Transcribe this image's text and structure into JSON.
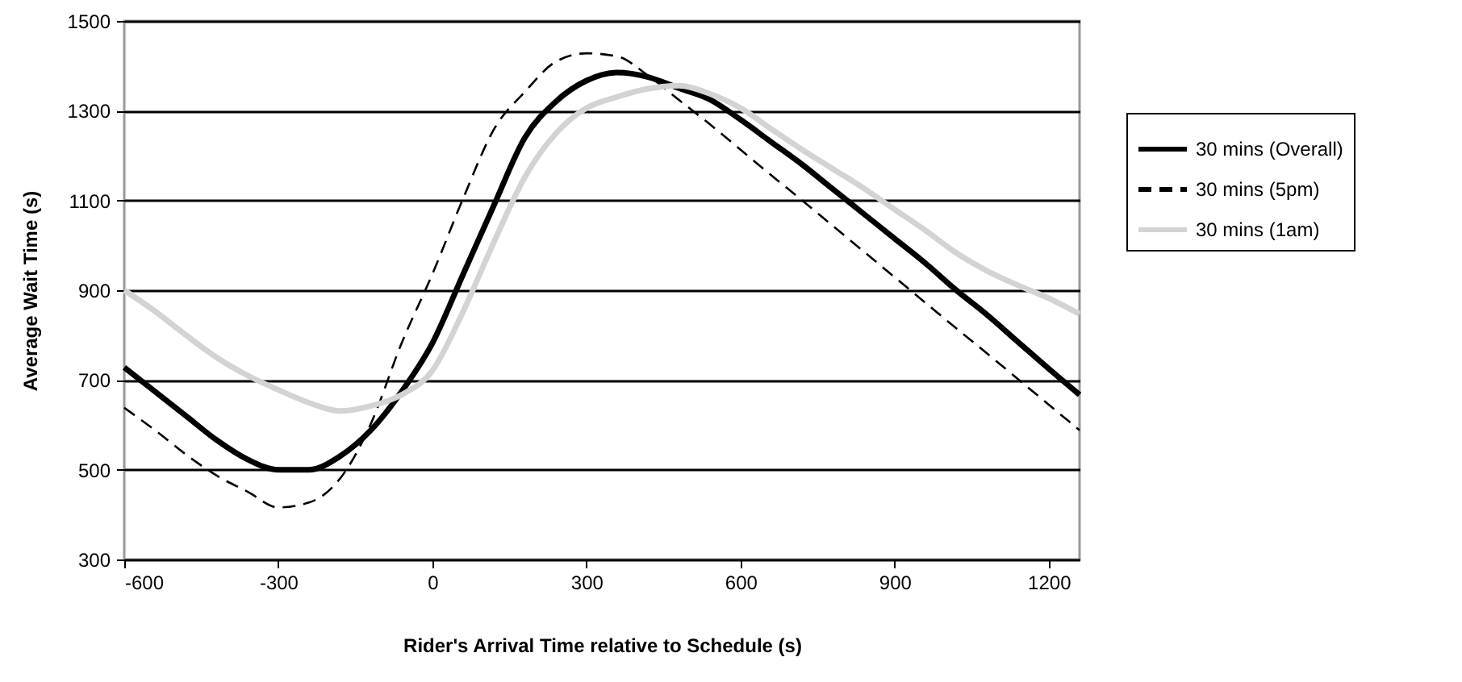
{
  "chart_data": {
    "type": "line",
    "xlabel": "Rider's Arrival Time relative to Schedule (s)",
    "ylabel": "Average Wait Time (s)",
    "x": [
      -600,
      -540,
      -480,
      -420,
      -360,
      -300,
      -240,
      -180,
      -120,
      -60,
      0,
      60,
      120,
      180,
      240,
      300,
      360,
      420,
      480,
      540,
      600,
      660,
      720,
      780,
      840,
      900,
      960,
      1020,
      1080,
      1140,
      1200,
      1260
    ],
    "series": [
      {
        "name": "30 mins (Overall)",
        "color": "#000000",
        "line_style": "solid",
        "values": [
          728,
          674,
          620,
          566,
          523,
          500,
          500,
          530,
          588,
          674,
          782,
          936,
          1090,
          1240,
          1320,
          1367,
          1385,
          1375,
          1350,
          1325,
          1280,
          1230,
          1180,
          1125,
          1070,
          1015,
          960,
          900,
          845,
          785,
          725,
          667
        ]
      },
      {
        "name": "30 mins (5pm)",
        "color": "#000000",
        "line_style": "dashed",
        "values": [
          638,
          588,
          534,
          487,
          451,
          416,
          427,
          480,
          602,
          782,
          936,
          1105,
          1259,
          1342,
          1409,
          1428,
          1421,
          1378,
          1324,
          1270,
          1213,
          1156,
          1100,
          1043,
          986,
          929,
          872,
          815,
          759,
          702,
          645,
          588
        ]
      },
      {
        "name": "30 mins (1am)",
        "color": "#d3d3d3",
        "line_style": "solid",
        "values": [
          900,
          853,
          800,
          750,
          710,
          678,
          649,
          631,
          642,
          667,
          721,
          853,
          1008,
          1152,
          1249,
          1306,
          1331,
          1349,
          1356,
          1338,
          1306,
          1259,
          1213,
          1170,
          1127,
          1080,
          1033,
          983,
          943,
          911,
          882,
          847
        ]
      }
    ],
    "xlim": [
      -600,
      1260
    ],
    "xticks": [
      -600,
      -300,
      0,
      300,
      600,
      900,
      1200
    ],
    "ylim": [
      300,
      1500
    ],
    "yticks": [
      300,
      500,
      700,
      900,
      1100,
      1300,
      1500
    ],
    "grid": "y",
    "legend": "right",
    "marker": "none"
  }
}
